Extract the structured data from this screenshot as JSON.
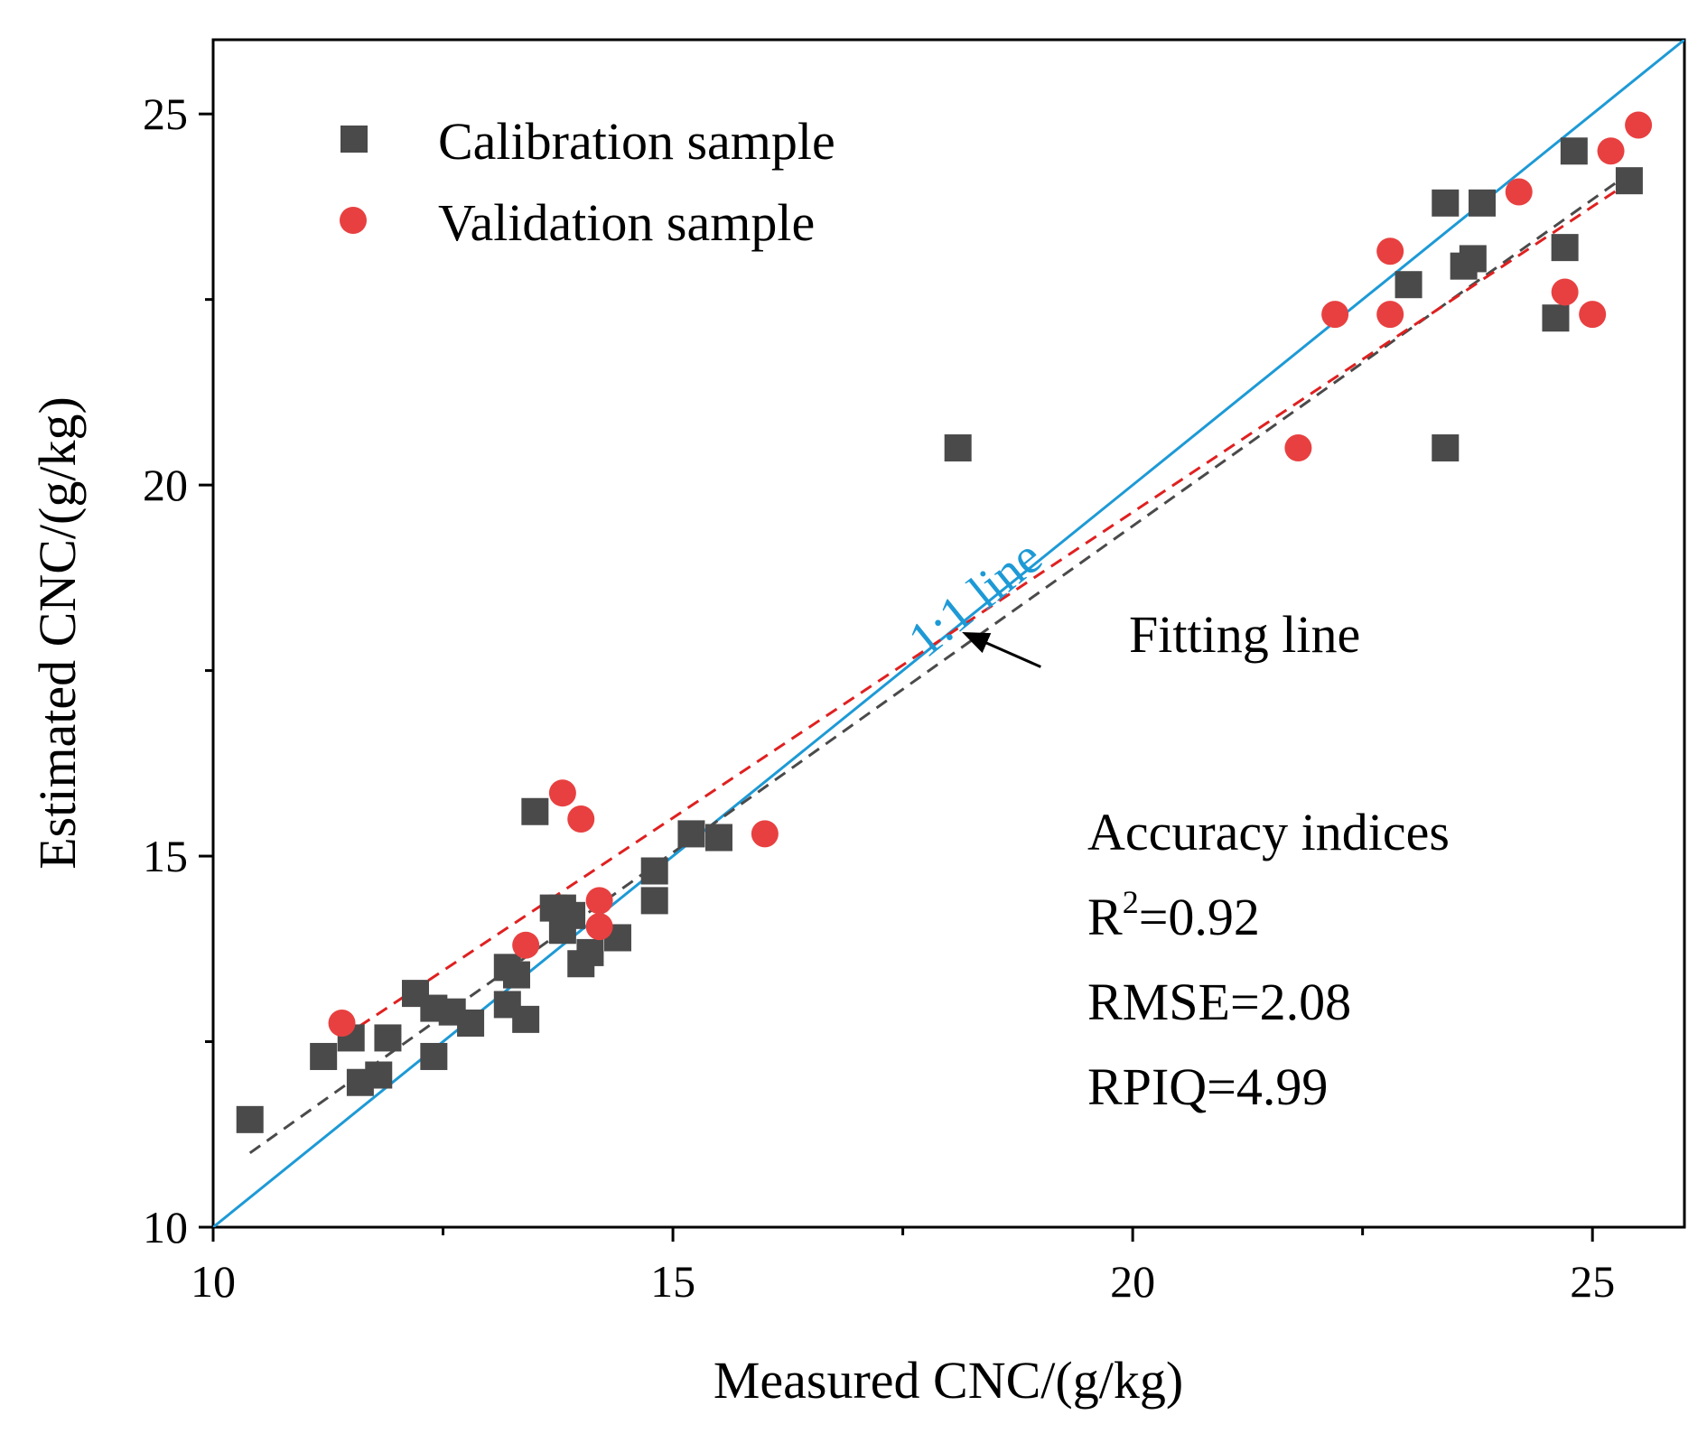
{
  "chart_data": {
    "type": "scatter",
    "xlabel": "Measured CNC/(g/kg)",
    "ylabel": "Estimated CNC/(g/kg)",
    "xlim": [
      10,
      26
    ],
    "ylim": [
      10,
      26
    ],
    "x_ticks": [
      10,
      15,
      20,
      25
    ],
    "y_ticks": [
      10,
      15,
      20,
      25
    ],
    "x_tick_labels": [
      "10",
      "15",
      "20",
      "25"
    ],
    "y_tick_labels": [
      "10",
      "15",
      "20",
      "25"
    ],
    "x_minor_ticks": [
      12.5,
      17.5,
      22.5
    ],
    "y_minor_ticks": [
      12.5,
      17.5,
      22.5
    ],
    "grid": false,
    "legend_position": "top-left",
    "series": [
      {
        "name": "Calibration sample",
        "marker": "square",
        "color": "#4a4a4a",
        "points": [
          [
            10.4,
            11.45
          ],
          [
            11.2,
            12.3
          ],
          [
            11.5,
            12.55
          ],
          [
            11.6,
            11.95
          ],
          [
            11.8,
            12.05
          ],
          [
            11.9,
            12.55
          ],
          [
            12.2,
            13.15
          ],
          [
            12.4,
            12.3
          ],
          [
            12.4,
            12.95
          ],
          [
            12.6,
            12.9
          ],
          [
            12.8,
            12.75
          ],
          [
            13.2,
            13.0
          ],
          [
            13.2,
            13.5
          ],
          [
            13.3,
            13.4
          ],
          [
            13.4,
            12.8
          ],
          [
            13.5,
            15.6
          ],
          [
            13.7,
            14.3
          ],
          [
            13.8,
            14.3
          ],
          [
            13.8,
            14.0
          ],
          [
            13.9,
            14.2
          ],
          [
            14.0,
            13.55
          ],
          [
            14.1,
            13.7
          ],
          [
            14.4,
            13.9
          ],
          [
            14.8,
            14.4
          ],
          [
            14.8,
            14.8
          ],
          [
            15.2,
            15.3
          ],
          [
            15.5,
            15.25
          ],
          [
            18.1,
            20.5
          ],
          [
            23.0,
            22.7
          ],
          [
            23.4,
            23.8
          ],
          [
            23.4,
            20.5
          ],
          [
            23.6,
            22.95
          ],
          [
            23.7,
            23.05
          ],
          [
            23.8,
            23.8
          ],
          [
            24.6,
            22.25
          ],
          [
            24.7,
            23.2
          ],
          [
            24.8,
            24.5
          ],
          [
            25.4,
            24.1
          ]
        ]
      },
      {
        "name": "Validation sample",
        "marker": "circle",
        "color": "#e84040",
        "points": [
          [
            11.4,
            12.75
          ],
          [
            13.4,
            13.8
          ],
          [
            13.8,
            15.85
          ],
          [
            14.0,
            15.5
          ],
          [
            14.2,
            14.4
          ],
          [
            14.2,
            14.05
          ],
          [
            16.0,
            15.3
          ],
          [
            21.8,
            20.5
          ],
          [
            22.2,
            22.3
          ],
          [
            22.8,
            23.15
          ],
          [
            22.8,
            22.3
          ],
          [
            24.2,
            23.95
          ],
          [
            24.7,
            22.6
          ],
          [
            25.0,
            22.3
          ],
          [
            25.2,
            24.5
          ],
          [
            25.5,
            24.85
          ]
        ]
      }
    ],
    "reference_lines": [
      {
        "name": "1:1 line",
        "label": "1:1 line",
        "style": "solid",
        "color": "#1d9ad6",
        "x": [
          10,
          26
        ],
        "y": [
          10,
          26
        ]
      },
      {
        "name": "Calibration fitting line",
        "style": "dashed",
        "color": "#4a4a4a",
        "x": [
          10.4,
          25.4
        ],
        "y": [
          11.0,
          24.2
        ]
      },
      {
        "name": "Validation fitting line",
        "style": "dashed",
        "color": "#e02020",
        "x": [
          11.4,
          25.3
        ],
        "y": [
          12.55,
          24.0
        ]
      }
    ],
    "annotations": {
      "fitting_line_label": "Fitting line",
      "fitting_arrow": {
        "from": [
          19.0,
          17.55
        ],
        "to": [
          18.3,
          17.9
        ]
      },
      "one_to_one_label_position": [
        18.4,
        18.3
      ],
      "accuracy_title": "Accuracy indices",
      "accuracy_lines": [
        {
          "prefix": "R",
          "superscript": "2",
          "text": "=0.92"
        },
        {
          "prefix": "",
          "superscript": "",
          "text": "RMSE=2.08"
        },
        {
          "prefix": "",
          "superscript": "",
          "text": "RPIQ=4.99"
        }
      ]
    }
  }
}
